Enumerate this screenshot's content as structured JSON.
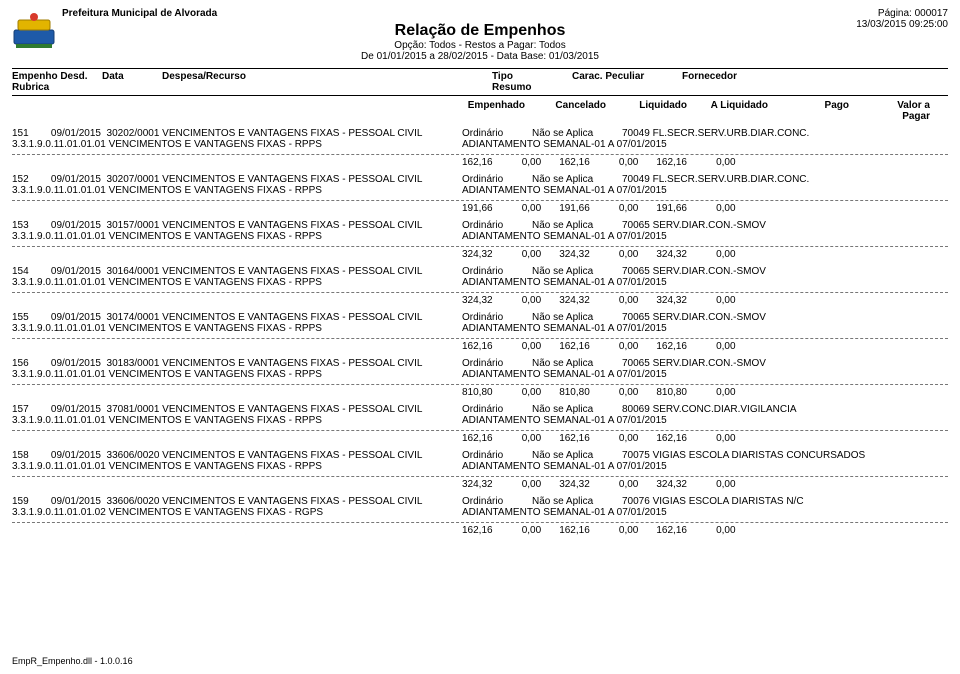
{
  "header": {
    "small_title": "Prefeitura Municipal de Alvorada",
    "main_title": "Relação de Empenhos",
    "sub1": "Opção: Todos - Restos a Pagar: Todos",
    "sub2": "De 01/01/2015 a 28/02/2015 - Data Base: 01/03/2015",
    "page": "Página: 000017",
    "datetime": "13/03/2015 09:25:00"
  },
  "col_header": {
    "r1_1": "Empenho Desd.",
    "r1_2": "Data",
    "r1_3": "Despesa/Recurso",
    "r1_4": "Tipo",
    "r1_5": "Carac. Peculiar",
    "r1_6": "Fornecedor",
    "r2_1": "Rubrica",
    "r2_2": "Resumo"
  },
  "money_header": {
    "c1": "Empenhado",
    "c2": "Cancelado",
    "c3": "Liquidado",
    "c4": "A Liquidado",
    "c5": "Pago",
    "c6": "Valor a Pagar"
  },
  "adiantamento": "ADIANTAMENTO SEMANAL-01 A 07/01/2015",
  "rubrica_text": "3.3.1.9.0.11.01.01.01 VENCIMENTOS E VANTAGENS FIXAS - RPPS",
  "rubrica_text_159": "3.3.1.9.0.11.01.01.02 VENCIMENTOS E VANTAGENS FIXAS - RGPS",
  "desc_text": "VENCIMENTOS E VANTAGENS FIXAS - PESSOAL CIVIL",
  "tipo": "Ordinário",
  "peculiar": "Não se Aplica",
  "entries": [
    {
      "emp": "151",
      "date": "09/01/2015",
      "code": "30202/0001",
      "forn": "70049 FL.SECR.SERV.URB.DIAR.CONC.",
      "t": [
        "162,16",
        "0,00",
        "162,16",
        "0,00",
        "162,16",
        "0,00"
      ]
    },
    {
      "emp": "152",
      "date": "09/01/2015",
      "code": "30207/0001",
      "forn": "70049 FL.SECR.SERV.URB.DIAR.CONC.",
      "t": [
        "191,66",
        "0,00",
        "191,66",
        "0,00",
        "191,66",
        "0,00"
      ]
    },
    {
      "emp": "153",
      "date": "09/01/2015",
      "code": "30157/0001",
      "forn": "70065 SERV.DIAR.CON.-SMOV",
      "t": [
        "324,32",
        "0,00",
        "324,32",
        "0,00",
        "324,32",
        "0,00"
      ]
    },
    {
      "emp": "154",
      "date": "09/01/2015",
      "code": "30164/0001",
      "forn": "70065 SERV.DIAR.CON.-SMOV",
      "t": [
        "324,32",
        "0,00",
        "324,32",
        "0,00",
        "324,32",
        "0,00"
      ]
    },
    {
      "emp": "155",
      "date": "09/01/2015",
      "code": "30174/0001",
      "forn": "70065 SERV.DIAR.CON.-SMOV",
      "t": [
        "162,16",
        "0,00",
        "162,16",
        "0,00",
        "162,16",
        "0,00"
      ]
    },
    {
      "emp": "156",
      "date": "09/01/2015",
      "code": "30183/0001",
      "forn": "70065 SERV.DIAR.CON.-SMOV",
      "t": [
        "810,80",
        "0,00",
        "810,80",
        "0,00",
        "810,80",
        "0,00"
      ]
    },
    {
      "emp": "157",
      "date": "09/01/2015",
      "code": "37081/0001",
      "forn": "80069 SERV.CONC.DIAR.VIGILANCIA",
      "t": [
        "162,16",
        "0,00",
        "162,16",
        "0,00",
        "162,16",
        "0,00"
      ]
    },
    {
      "emp": "158",
      "date": "09/01/2015",
      "code": "33606/0020",
      "forn": "70075 VIGIAS ESCOLA DIARISTAS CONCURSADOS",
      "t": [
        "324,32",
        "0,00",
        "324,32",
        "0,00",
        "324,32",
        "0,00"
      ]
    },
    {
      "emp": "159",
      "date": "09/01/2015",
      "code": "33606/0020",
      "forn": "70076 VIGIAS ESCOLA DIARISTAS N/C",
      "t": [
        "162,16",
        "0,00",
        "162,16",
        "0,00",
        "162,16",
        "0,00"
      ],
      "rubrica_alt": true
    }
  ],
  "footer": "EmpR_Empenho.dll - 1.0.0.16"
}
